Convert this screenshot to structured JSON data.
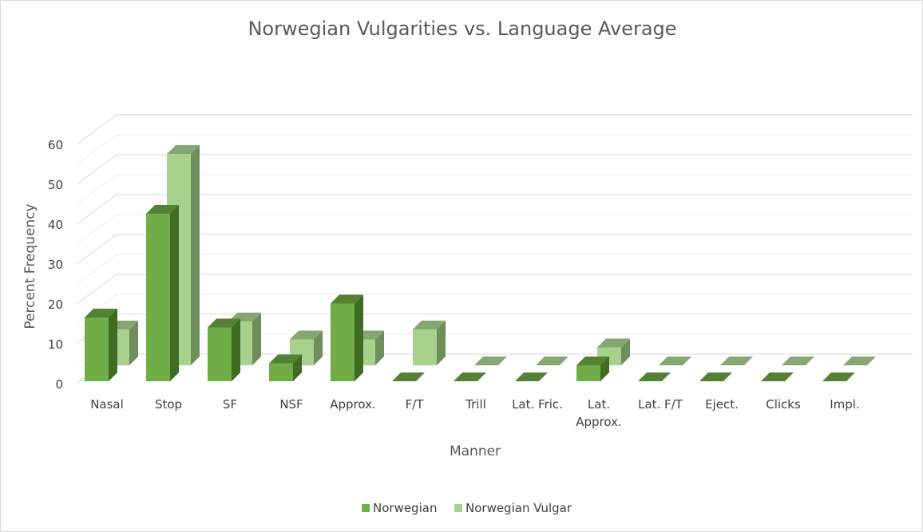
{
  "chart_data": {
    "type": "bar",
    "title": "Norwegian Vulgarities vs. Language Average",
    "xlabel": "Manner",
    "ylabel": "Percent Frequency",
    "ylim": [
      0,
      60
    ],
    "yticks": [
      0,
      10,
      20,
      30,
      40,
      50,
      60
    ],
    "grid": true,
    "style": "3d-clustered-columns",
    "legend_position": "bottom",
    "categories": [
      "Nasal",
      "Stop",
      "SF",
      "NSF",
      "Approx.",
      "F/T",
      "Trill",
      "Lat. Fric.",
      "Lat. Approx.",
      "Lat. F/T",
      "Eject.",
      "Clicks",
      "Impl."
    ],
    "series": [
      {
        "name": "Norwegian",
        "color": "#70ad47",
        "values": [
          16,
          42,
          13.5,
          4.5,
          19.5,
          0,
          0,
          0,
          4,
          0,
          0,
          0,
          0
        ]
      },
      {
        "name": "Norwegian Vulgar",
        "color": "#a9d18e",
        "values": [
          9,
          53,
          11,
          6.5,
          6.5,
          9,
          0,
          0,
          4.5,
          0,
          0,
          0,
          0
        ]
      }
    ]
  }
}
